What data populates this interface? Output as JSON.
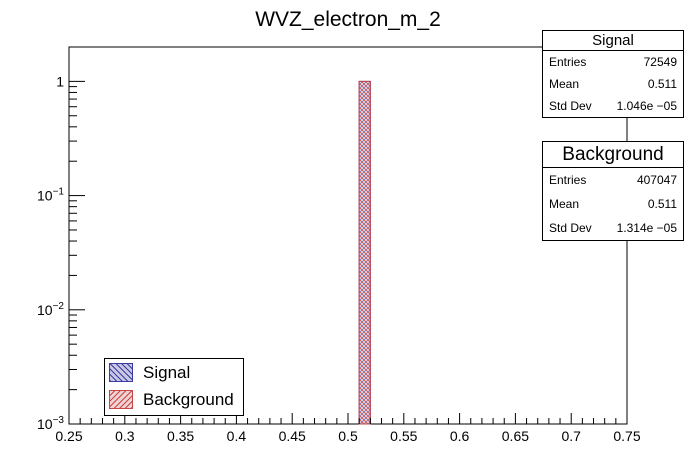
{
  "chart_data": {
    "type": "bar",
    "title": "WVZ_electron_m_2",
    "xlabel": "",
    "ylabel": "",
    "xlim": [
      0.25,
      0.75
    ],
    "ylim": [
      0.001,
      2
    ],
    "yscale": "log",
    "x_ticks": [
      "0.25",
      "0.3",
      "0.35",
      "0.4",
      "0.45",
      "0.5",
      "0.55",
      "0.6",
      "0.65",
      "0.7",
      "0.75"
    ],
    "y_ticks": [
      {
        "base": "10",
        "exp": "−3"
      },
      {
        "base": "10",
        "exp": "−2"
      },
      {
        "base": "10",
        "exp": "−1"
      },
      {
        "base": "1",
        "exp": ""
      }
    ],
    "bin_edges": [
      0.51,
      0.52
    ],
    "series": [
      {
        "name": "Signal",
        "values": [
          1.0
        ],
        "color": "#3c3ca0",
        "fill": "#c8c8e6"
      },
      {
        "name": "Background",
        "values": [
          1.0
        ],
        "color": "#c84646",
        "fill": "#f0d2d2"
      }
    ],
    "grid": false,
    "legend_position": "bottom-left"
  },
  "stats": [
    {
      "title": "Signal",
      "rows": [
        {
          "label": "Entries",
          "value": "72549"
        },
        {
          "label": "Mean",
          "value": "0.511"
        },
        {
          "label": "Std Dev",
          "value": "1.046e −05"
        }
      ]
    },
    {
      "title": "Background",
      "rows": [
        {
          "label": "Entries",
          "value": "407047"
        },
        {
          "label": "Mean",
          "value": "0.511"
        },
        {
          "label": "Std Dev",
          "value": "1.314e −05"
        }
      ]
    }
  ],
  "legend": [
    {
      "label": "Signal",
      "color": "#3c3ca0",
      "fill": "#c8c8e6"
    },
    {
      "label": "Background",
      "color": "#c84646",
      "fill": "#f0d2d2"
    }
  ]
}
